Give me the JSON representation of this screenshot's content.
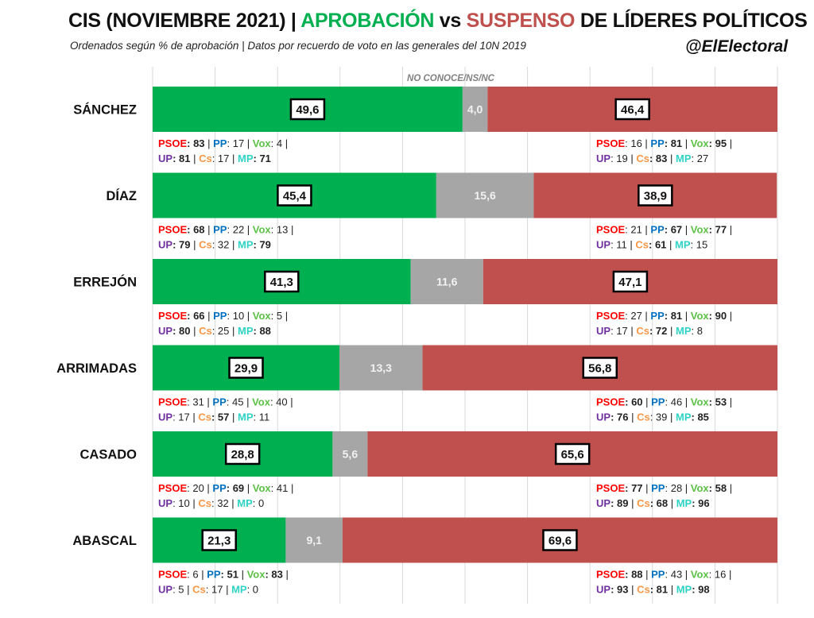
{
  "header": {
    "title_part1": "CIS (NOVIEMBRE 2021) | ",
    "title_approval": "APROBACIÓN",
    "title_vs": " vs ",
    "title_fail": "SUSPENSO",
    "title_part2": " DE LÍDERES POLÍTICOS",
    "subtitle": "Ordenados según % de aprobación | Datos por recuerdo de voto en las generales del 10N 2019",
    "handle": "@ElElectoral"
  },
  "colors": {
    "approval": "#00b050",
    "no_knows": "#a6a6a6",
    "fail": "#c0504d",
    "grid": "#d9d9d9",
    "party": {
      "PSOE": "#ff0000",
      "PP": "#0070c0",
      "Vox": "#5cc246",
      "UP": "#7030a0",
      "Cs": "#f79646",
      "MP": "#2ed3c6"
    }
  },
  "chart_data": {
    "type": "bar",
    "orientation": "horizontal-stacked-100",
    "title": "CIS (NOVIEMBRE 2021) | APROBACIÓN vs SUSPENSO DE LÍDERES POLÍTICOS",
    "subtitle": "Ordenados según % de aprobación | Datos por recuerdo de voto en las generales del 10N 2019",
    "xlim": [
      0,
      100
    ],
    "grid": true,
    "series_header": "NO CONOCE/NS/NC",
    "categories": [
      "SÁNCHEZ",
      "DÍAZ",
      "ERREJÓN",
      "ARRIMADAS",
      "CASADO",
      "ABASCAL"
    ],
    "series": [
      {
        "name": "APROBACIÓN",
        "values": [
          49.6,
          45.4,
          41.3,
          29.9,
          28.8,
          21.3
        ],
        "labels": [
          "49,6",
          "45,4",
          "41,3",
          "29,9",
          "28,8",
          "21,3"
        ]
      },
      {
        "name": "NO CONOCE/NS/NC",
        "values": [
          4.0,
          15.6,
          11.6,
          13.3,
          5.6,
          9.1
        ],
        "labels": [
          "4,0",
          "15,6",
          "11,6",
          "13,3",
          "5,6",
          "9,1"
        ]
      },
      {
        "name": "SUSPENSO",
        "values": [
          46.4,
          38.9,
          47.1,
          56.8,
          65.6,
          69.6
        ],
        "labels": [
          "46,4",
          "38,9",
          "47,1",
          "56,8",
          "65,6",
          "69,6"
        ]
      }
    ],
    "party_breakdown": [
      {
        "leader": "SÁNCHEZ",
        "approval": [
          [
            "PSOE",
            "83",
            true
          ],
          [
            "PP",
            "17",
            false
          ],
          [
            "Vox",
            "4",
            false
          ],
          [
            "UP",
            "81",
            true
          ],
          [
            "Cs",
            "17",
            false
          ],
          [
            "MP",
            "71",
            true
          ]
        ],
        "fail": [
          [
            "PSOE",
            "16",
            false
          ],
          [
            "PP",
            "81",
            true
          ],
          [
            "Vox",
            "95",
            true
          ],
          [
            "UP",
            "19",
            false
          ],
          [
            "Cs",
            "83",
            true
          ],
          [
            "MP",
            "27",
            false
          ]
        ]
      },
      {
        "leader": "DÍAZ",
        "approval": [
          [
            "PSOE",
            "68",
            true
          ],
          [
            "PP",
            "22",
            false
          ],
          [
            "Vox",
            "13",
            false
          ],
          [
            "UP",
            "79",
            true
          ],
          [
            "Cs",
            "32",
            false
          ],
          [
            "MP",
            "79",
            true
          ]
        ],
        "fail": [
          [
            "PSOE",
            "21",
            false
          ],
          [
            "PP",
            "67",
            true
          ],
          [
            "Vox",
            "77",
            true
          ],
          [
            "UP",
            "11",
            false
          ],
          [
            "Cs",
            "61",
            true
          ],
          [
            "MP",
            "15",
            false
          ]
        ]
      },
      {
        "leader": "ERREJÓN",
        "approval": [
          [
            "PSOE",
            "66",
            true
          ],
          [
            "PP",
            "10",
            false
          ],
          [
            "Vox",
            "5",
            false
          ],
          [
            "UP",
            "80",
            true
          ],
          [
            "Cs",
            "25",
            false
          ],
          [
            "MP",
            "88",
            true
          ]
        ],
        "fail": [
          [
            "PSOE",
            "27",
            false
          ],
          [
            "PP",
            "81",
            true
          ],
          [
            "Vox",
            "90",
            true
          ],
          [
            "UP",
            "17",
            false
          ],
          [
            "Cs",
            "72",
            true
          ],
          [
            "MP",
            "8",
            false
          ]
        ]
      },
      {
        "leader": "ARRIMADAS",
        "approval": [
          [
            "PSOE",
            "31",
            false
          ],
          [
            "PP",
            "45",
            false
          ],
          [
            "Vox",
            "40",
            false
          ],
          [
            "UP",
            "17",
            false
          ],
          [
            "Cs",
            "57",
            true
          ],
          [
            "MP",
            "11",
            false
          ]
        ],
        "fail": [
          [
            "PSOE",
            "60",
            true
          ],
          [
            "PP",
            "46",
            false
          ],
          [
            "Vox",
            "53",
            true
          ],
          [
            "UP",
            "76",
            true
          ],
          [
            "Cs",
            "39",
            false
          ],
          [
            "MP",
            "85",
            true
          ]
        ]
      },
      {
        "leader": "CASADO",
        "approval": [
          [
            "PSOE",
            "20",
            false
          ],
          [
            "PP",
            "69",
            true
          ],
          [
            "Vox",
            "41",
            false
          ],
          [
            "UP",
            "10",
            false
          ],
          [
            "Cs",
            "32",
            false
          ],
          [
            "MP",
            "0",
            false
          ]
        ],
        "fail": [
          [
            "PSOE",
            "77",
            true
          ],
          [
            "PP",
            "28",
            false
          ],
          [
            "Vox",
            "58",
            true
          ],
          [
            "UP",
            "89",
            true
          ],
          [
            "Cs",
            "68",
            true
          ],
          [
            "MP",
            "96",
            true
          ]
        ]
      },
      {
        "leader": "ABASCAL",
        "approval": [
          [
            "PSOE",
            "6",
            false
          ],
          [
            "PP",
            "51",
            true
          ],
          [
            "Vox",
            "83",
            true
          ],
          [
            "UP",
            "5",
            false
          ],
          [
            "Cs",
            "17",
            false
          ],
          [
            "MP",
            "0",
            false
          ]
        ],
        "fail": [
          [
            "PSOE",
            "88",
            true
          ],
          [
            "PP",
            "43",
            false
          ],
          [
            "Vox",
            "16",
            false
          ],
          [
            "UP",
            "93",
            true
          ],
          [
            "Cs",
            "81",
            true
          ],
          [
            "MP",
            "98",
            true
          ]
        ]
      }
    ]
  }
}
